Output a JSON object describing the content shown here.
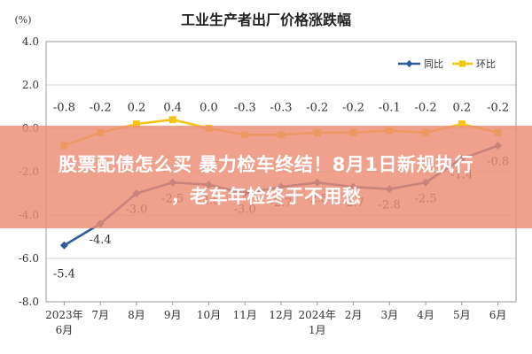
{
  "chart_data": {
    "type": "line",
    "title": "工业生产者出厂价格涨跌幅",
    "unit": "(%)",
    "categories": [
      [
        "2023年",
        "6月"
      ],
      [
        "7月"
      ],
      [
        "8月"
      ],
      [
        "9月"
      ],
      [
        "10月"
      ],
      [
        "11月"
      ],
      [
        "12月"
      ],
      [
        "2024年",
        "1月"
      ],
      [
        "2月"
      ],
      [
        "3月"
      ],
      [
        "4月"
      ],
      [
        "5月"
      ],
      [
        "6月"
      ]
    ],
    "ylim": [
      -8.0,
      4.0
    ],
    "yticks": [
      "4.0",
      "2.0",
      "0.0",
      "-2.0",
      "-4.0",
      "-6.0",
      "-8.0"
    ],
    "ytick_values": [
      4,
      2,
      0,
      -2,
      -4,
      -6,
      -8
    ],
    "grid": true,
    "legend_position": "top-right",
    "series": [
      {
        "name": "同比",
        "color": "#2e5b9a",
        "values": [
          -5.4,
          -4.4,
          -3.0,
          -2.5,
          -2.6,
          -3.0,
          -2.7,
          -2.5,
          -2.7,
          -2.8,
          -2.5,
          -1.4,
          -0.8
        ],
        "labels": [
          "-5.4",
          "-4.4",
          "-3.0",
          "-2.5",
          "-2.6",
          "-3.0",
          "-2.7",
          "-2.5",
          "-2.7",
          "-2.8",
          "-2.5",
          "-1.4",
          "-0.8"
        ]
      },
      {
        "name": "环比",
        "color": "#f5c518",
        "values": [
          -0.8,
          -0.2,
          0.2,
          0.4,
          0.0,
          -0.3,
          -0.3,
          -0.2,
          -0.2,
          -0.1,
          -0.2,
          0.2,
          -0.2
        ],
        "labels": [
          "-0.8",
          "-0.2",
          "0.2",
          "0.4",
          "0.0",
          "-0.3",
          "-0.3",
          "-0.2",
          "-0.2",
          "-0.1",
          "-0.2",
          "0.2",
          "-0.2"
        ]
      }
    ]
  },
  "banner": {
    "line1": "股票配债怎么买 暴力检车终结！8月1日新规执行",
    "line2": "，老车年检终于不用愁"
  }
}
